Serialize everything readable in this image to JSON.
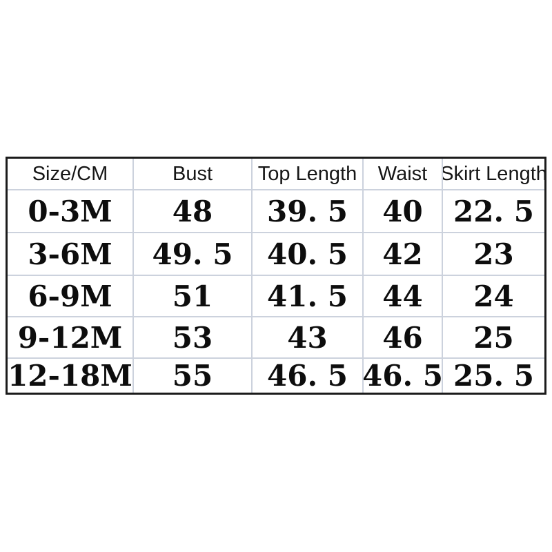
{
  "page": {
    "background_color": "#ffffff",
    "table_border_color": "#1b1b1b",
    "grid_line_color": "#ccd2dd",
    "header_text_color": "#161616",
    "data_text_color": "#0d0d0d"
  },
  "size_chart": {
    "columns": [
      "Size/CM",
      "Bust",
      "Top Length",
      "Waist",
      "Skirt Length"
    ],
    "rows": [
      [
        "0-3M",
        "48",
        "39. 5",
        "40",
        "22. 5"
      ],
      [
        "3-6M",
        "49. 5",
        "40. 5",
        "42",
        "23"
      ],
      [
        "6-9M",
        "51",
        "41. 5",
        "44",
        "24"
      ],
      [
        "9-12M",
        "53",
        "43",
        "46",
        "25"
      ],
      [
        "12-18M",
        "55",
        "46. 5",
        "46. 5",
        "25. 5"
      ]
    ]
  },
  "chart_data": {
    "type": "table",
    "title": "",
    "unit": "CM",
    "columns": [
      "Size/CM",
      "Bust",
      "Top Length",
      "Waist",
      "Skirt Length"
    ],
    "rows": [
      {
        "size": "0-3M",
        "bust": 48,
        "top_length": 39.5,
        "waist": 40,
        "skirt_length": 22.5
      },
      {
        "size": "3-6M",
        "bust": 49.5,
        "top_length": 40.5,
        "waist": 42,
        "skirt_length": 23
      },
      {
        "size": "6-9M",
        "bust": 51,
        "top_length": 41.5,
        "waist": 44,
        "skirt_length": 24
      },
      {
        "size": "9-12M",
        "bust": 53,
        "top_length": 43,
        "waist": 46,
        "skirt_length": 25
      },
      {
        "size": "12-18M",
        "bust": 55,
        "top_length": 46.5,
        "waist": 46.5,
        "skirt_length": 25.5
      }
    ]
  }
}
